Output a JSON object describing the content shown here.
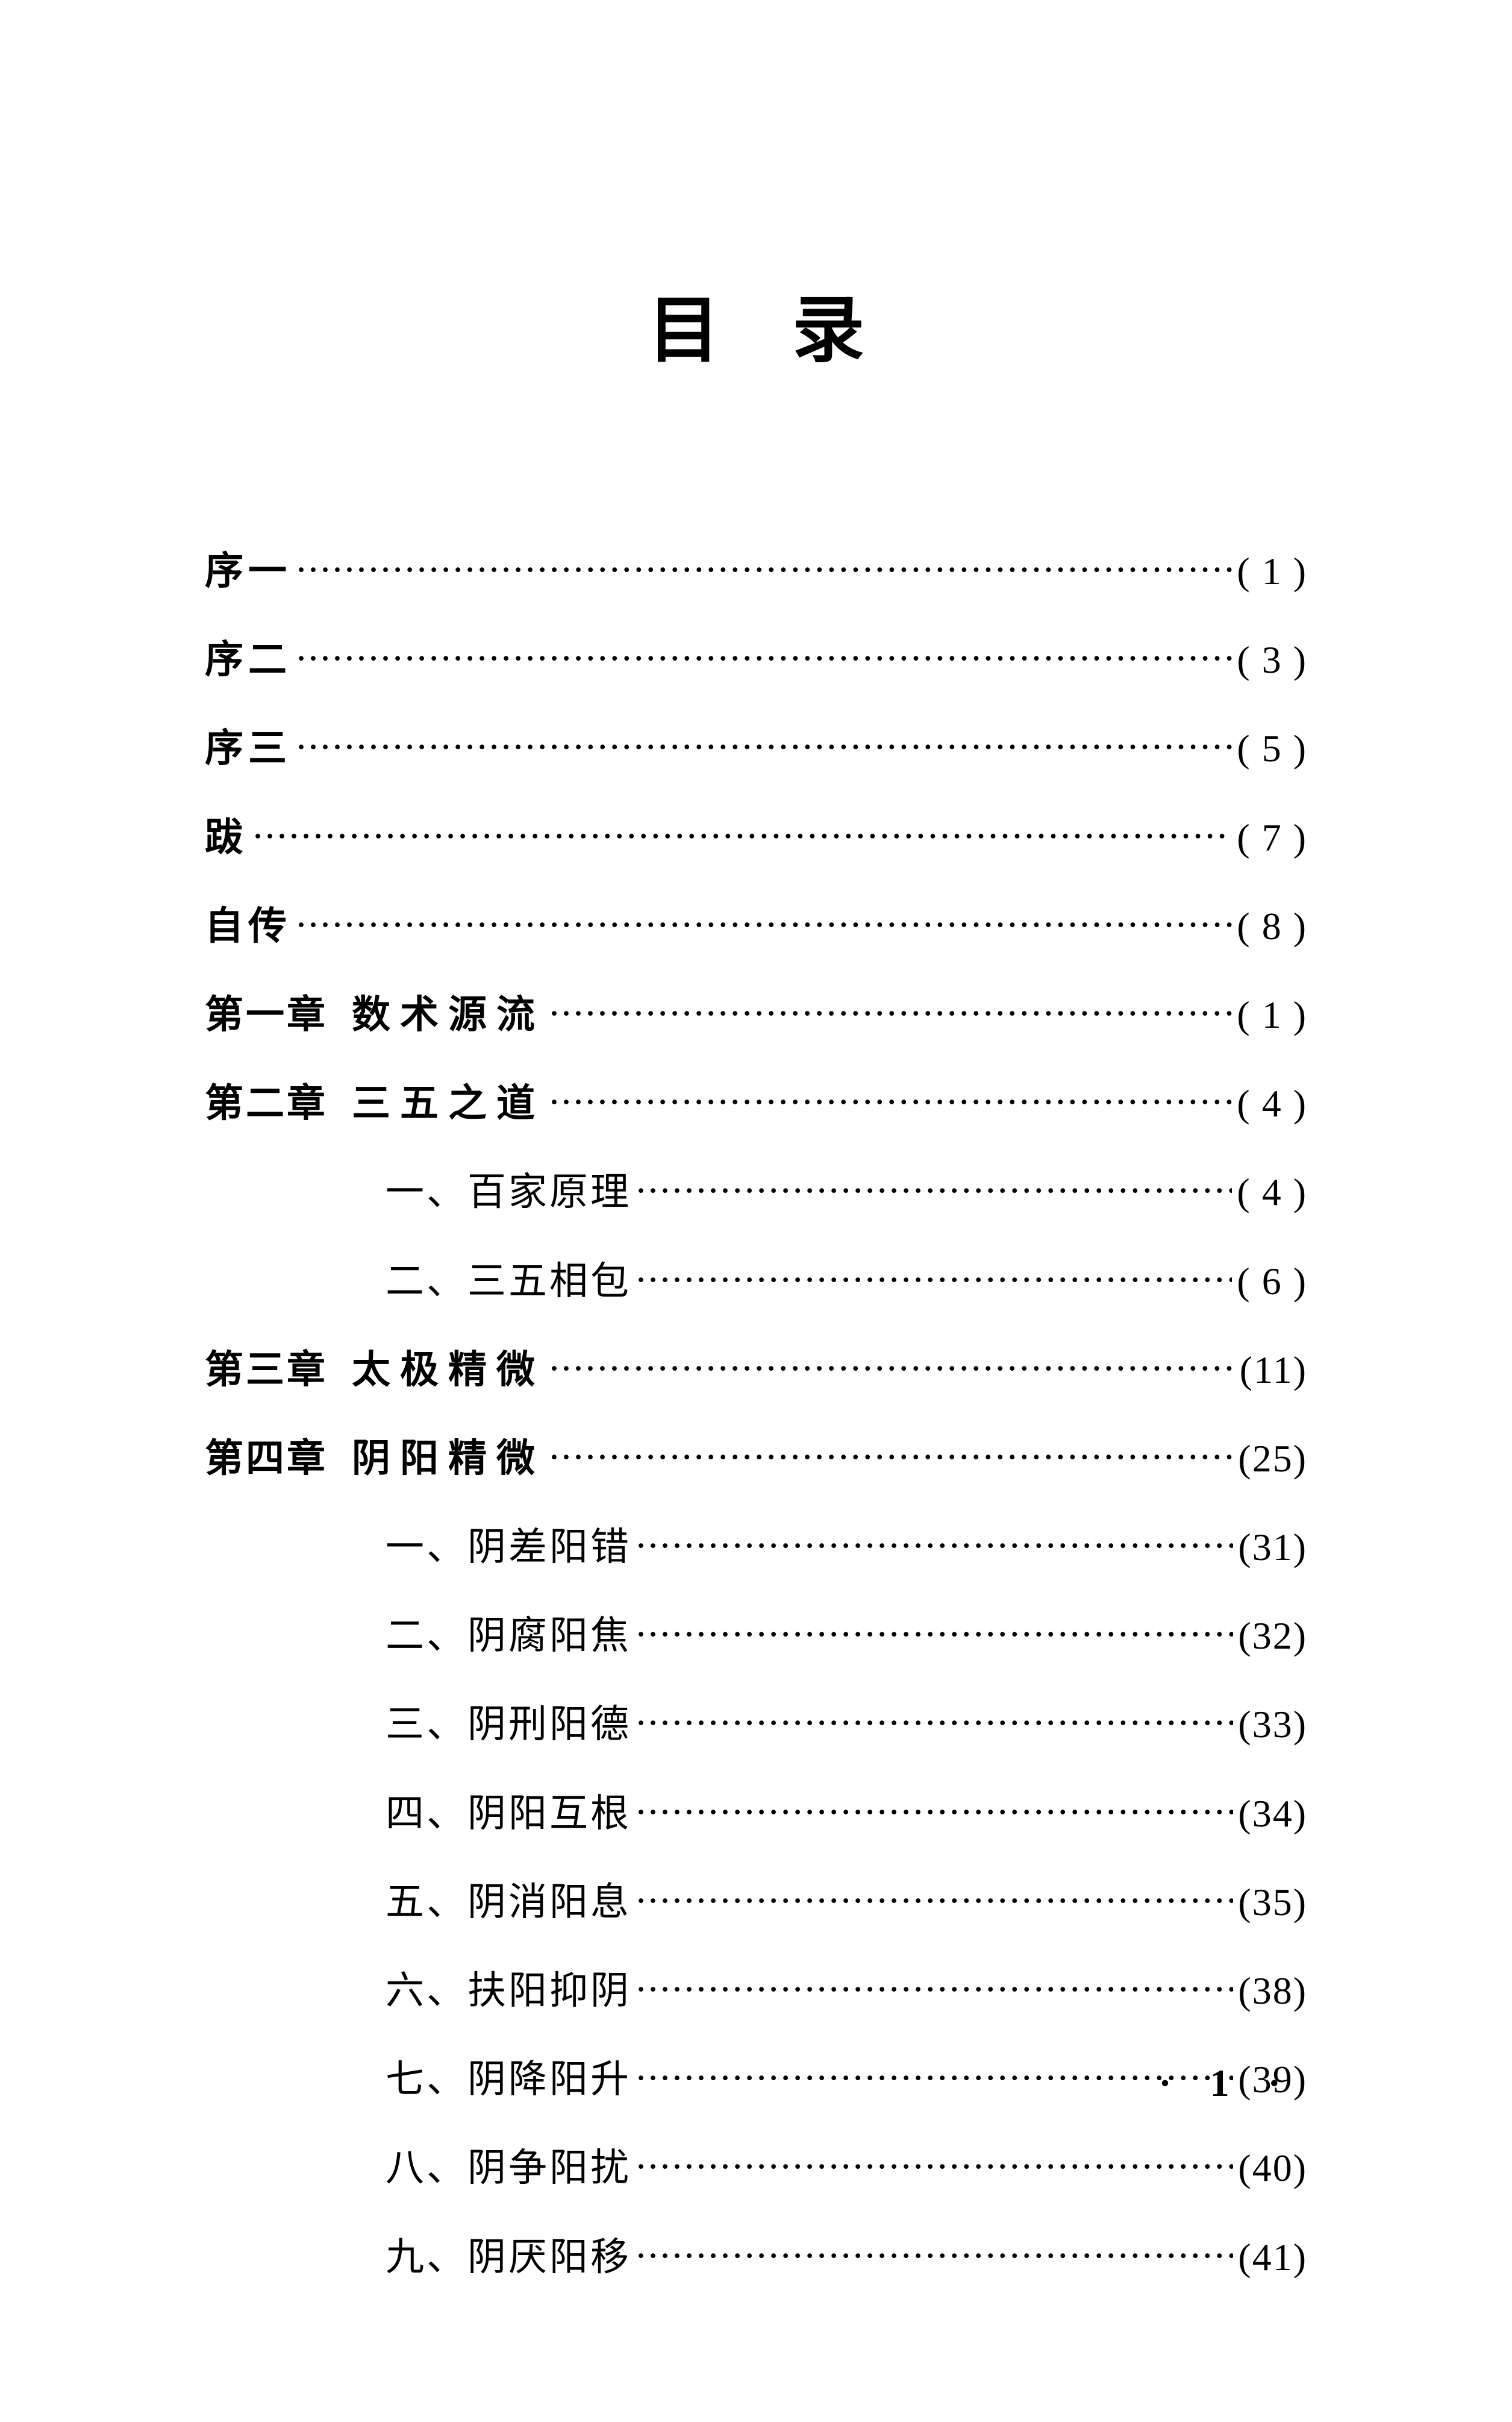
{
  "title": "目录",
  "entries": [
    {
      "type": "front",
      "label": "序一",
      "page": "( 1 )"
    },
    {
      "type": "front",
      "label": "序二",
      "page": "( 3 )"
    },
    {
      "type": "front",
      "label": "序三",
      "page": "( 5 )"
    },
    {
      "type": "front",
      "label": "跋",
      "page": "( 7 )"
    },
    {
      "type": "front",
      "label": "自传",
      "page": "( 8 )"
    },
    {
      "type": "chapter",
      "chapterNo": "第一章",
      "chapterTitle": "数术源流",
      "page": "( 1 )"
    },
    {
      "type": "chapter",
      "chapterNo": "第二章",
      "chapterTitle": "三五之道",
      "page": "( 4 )"
    },
    {
      "type": "section",
      "sectionNo": "一、",
      "sectionTitle": "百家原理",
      "page": "( 4 )"
    },
    {
      "type": "section",
      "sectionNo": "二、",
      "sectionTitle": "三五相包",
      "page": "( 6 )"
    },
    {
      "type": "chapter",
      "chapterNo": "第三章",
      "chapterTitle": "太极精微",
      "page": "(11)"
    },
    {
      "type": "chapter",
      "chapterNo": "第四章",
      "chapterTitle": "阴阳精微",
      "page": "(25)"
    },
    {
      "type": "section",
      "sectionNo": "一、",
      "sectionTitle": "阴差阳错",
      "page": "(31)"
    },
    {
      "type": "section",
      "sectionNo": "二、",
      "sectionTitle": "阴腐阳焦",
      "page": "(32)"
    },
    {
      "type": "section",
      "sectionNo": "三、",
      "sectionTitle": "阴刑阳德",
      "page": "(33)"
    },
    {
      "type": "section",
      "sectionNo": "四、",
      "sectionTitle": "阴阳互根",
      "page": "(34)"
    },
    {
      "type": "section",
      "sectionNo": "五、",
      "sectionTitle": "阴消阳息",
      "page": "(35)"
    },
    {
      "type": "section",
      "sectionNo": "六、",
      "sectionTitle": "扶阳抑阴",
      "page": "(38)"
    },
    {
      "type": "section",
      "sectionNo": "七、",
      "sectionTitle": "阴降阳升",
      "page": "(39)"
    },
    {
      "type": "section",
      "sectionNo": "八、",
      "sectionTitle": "阴争阳扰",
      "page": "(40)"
    },
    {
      "type": "section",
      "sectionNo": "九、",
      "sectionTitle": "阴厌阳移",
      "page": "(41)"
    }
  ],
  "footer": "· 1 ·"
}
